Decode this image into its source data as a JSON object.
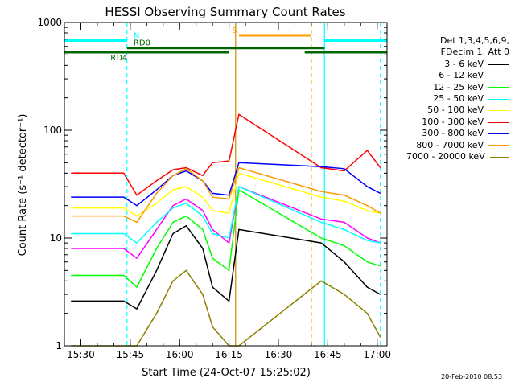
{
  "chart_data": {
    "type": "line",
    "title": "HESSI Observing Summary Count Rates",
    "xlabel": "Start Time (24-Oct-07 15:25:02)",
    "ylabel": "Count Rate (s⁻¹ detector⁻¹)",
    "yscale": "log",
    "ylim": [
      1,
      1000
    ],
    "xlim": [
      "15:25",
      "17:03"
    ],
    "x_ticks": [
      "15:30",
      "15:45",
      "16:00",
      "16:15",
      "16:30",
      "16:45",
      "17:00"
    ],
    "y_ticks": [
      "1",
      "10",
      "100",
      "1000"
    ],
    "legend_header": [
      "Det 1,3,4,5,6,9,",
      "FDecim 1, Att 0"
    ],
    "series": [
      {
        "name": "3 - 6 keV",
        "color": "#000000",
        "x": [
          "15:27",
          "15:43",
          "15:47",
          "15:53",
          "15:58",
          "16:02",
          "16:07",
          "16:10",
          "16:15",
          "16:18",
          "16:43",
          "16:50",
          "16:57",
          "17:01"
        ],
        "y": [
          2.6,
          2.6,
          2.2,
          5,
          11,
          13,
          8,
          3.5,
          2.6,
          12,
          9,
          6,
          3.5,
          3
        ]
      },
      {
        "name": "6 - 12 keV",
        "color": "#ff00ff",
        "x": [
          "15:27",
          "15:43",
          "15:47",
          "15:53",
          "15:58",
          "16:02",
          "16:07",
          "16:10",
          "16:15",
          "16:18",
          "16:43",
          "16:50",
          "16:57",
          "17:01"
        ],
        "y": [
          8,
          8,
          6.5,
          12,
          20,
          23,
          18,
          12,
          9,
          30,
          15,
          14,
          10,
          9
        ]
      },
      {
        "name": "12 - 25 keV",
        "color": "#00ff00",
        "x": [
          "15:27",
          "15:43",
          "15:47",
          "15:53",
          "15:58",
          "16:02",
          "16:07",
          "16:10",
          "16:15",
          "16:18",
          "16:43",
          "16:50",
          "16:57",
          "17:01"
        ],
        "y": [
          4.5,
          4.5,
          3.5,
          8,
          14,
          16,
          12,
          6.5,
          5,
          28,
          10,
          8.5,
          6,
          5.5
        ]
      },
      {
        "name": "25 - 50 keV",
        "color": "#00ffff",
        "x": [
          "15:27",
          "15:43",
          "15:47",
          "15:53",
          "15:58",
          "16:02",
          "16:07",
          "16:10",
          "16:15",
          "16:18",
          "16:43",
          "16:50",
          "16:57",
          "17:01"
        ],
        "y": [
          11,
          11,
          9,
          14,
          19,
          21,
          16,
          11,
          10,
          30,
          14,
          12,
          9.5,
          9
        ]
      },
      {
        "name": "50 - 100 keV",
        "color": "#ffff00",
        "x": [
          "15:27",
          "15:43",
          "15:47",
          "15:53",
          "15:58",
          "16:02",
          "16:07",
          "16:10",
          "16:15",
          "16:18",
          "16:43",
          "16:50",
          "16:57",
          "17:01"
        ],
        "y": [
          19,
          19,
          16,
          21,
          28,
          30,
          24,
          18,
          17,
          40,
          24,
          22,
          18,
          17
        ]
      },
      {
        "name": "100 - 300 keV",
        "color": "#ff0000",
        "x": [
          "15:27",
          "15:43",
          "15:47",
          "15:53",
          "15:58",
          "16:02",
          "16:07",
          "16:10",
          "16:15",
          "16:18",
          "16:43",
          "16:50",
          "16:57",
          "17:01"
        ],
        "y": [
          40,
          40,
          25,
          34,
          43,
          45,
          38,
          50,
          52,
          140,
          45,
          42,
          65,
          45
        ]
      },
      {
        "name": "300 - 800 keV",
        "color": "#0000ff",
        "x": [
          "15:27",
          "15:43",
          "15:47",
          "15:53",
          "15:58",
          "16:02",
          "16:07",
          "16:10",
          "16:15",
          "16:18",
          "16:43",
          "16:50",
          "16:57",
          "17:01"
        ],
        "y": [
          24,
          24,
          20,
          28,
          38,
          42,
          34,
          26,
          25,
          50,
          46,
          44,
          30,
          26
        ]
      },
      {
        "name": "800 - 7000 keV",
        "color": "#ff9900",
        "x": [
          "15:27",
          "15:43",
          "15:47",
          "15:53",
          "15:58",
          "16:02",
          "16:07",
          "16:10",
          "16:15",
          "16:18",
          "16:43",
          "16:50",
          "16:57",
          "17:01"
        ],
        "y": [
          16,
          16,
          14,
          26,
          38,
          44,
          34,
          24,
          23,
          45,
          27,
          25,
          20,
          17
        ]
      },
      {
        "name": "7000 - 20000 keV",
        "color": "#8b8000",
        "x": [
          "15:27",
          "15:43",
          "15:47",
          "15:53",
          "15:58",
          "16:02",
          "16:07",
          "16:10",
          "16:15",
          "16:18",
          "16:43",
          "16:50",
          "16:57",
          "17:01"
        ],
        "y": [
          1,
          1,
          1,
          2,
          4,
          5,
          3,
          1.5,
          1,
          1,
          4,
          3,
          2,
          1.2
        ]
      }
    ],
    "flags": [
      {
        "label": "N",
        "color": "#00ffff",
        "start": "15:25",
        "end": "17:03",
        "gap": [
          "15:44",
          "16:44"
        ],
        "level": 680,
        "label_at": "15:46"
      },
      {
        "label": "RD0",
        "color": "#006600",
        "start": "15:44",
        "end": "16:44",
        "level": 580,
        "label_at": "15:46"
      },
      {
        "label": "RD4",
        "color": "#006600",
        "start": "15:25",
        "end": "17:03",
        "gap": [
          "16:15",
          "16:38"
        ],
        "level": 530,
        "label_at": "15:39"
      },
      {
        "label": "S",
        "color": "#ff9900",
        "start": "16:18",
        "end": "16:40",
        "level": 760,
        "label_at": "16:16"
      }
    ],
    "vertical_markers": [
      {
        "x": "15:44",
        "color": "#00ffff",
        "style": "dashed"
      },
      {
        "x": "16:17",
        "color": "#cc8800",
        "style": "solid"
      },
      {
        "x": "16:40",
        "color": "#ff9900",
        "style": "dashed"
      },
      {
        "x": "16:44",
        "color": "#00ffff",
        "style": "solid"
      },
      {
        "x": "17:01",
        "color": "#00ffff",
        "style": "dashed"
      }
    ],
    "grid": false,
    "legend_position": "right"
  },
  "footer": {
    "datestamp": "20-Feb-2010 08:53"
  }
}
